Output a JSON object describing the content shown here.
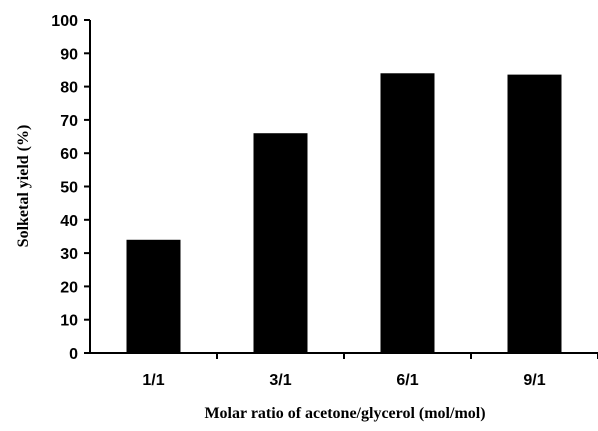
{
  "chart_data": {
    "type": "bar",
    "categories": [
      "1/1",
      "3/1",
      "6/1",
      "9/1"
    ],
    "values": [
      34,
      66,
      84,
      83.6
    ],
    "xlabel": "Molar ratio of acetone/glycerol (mol/mol)",
    "ylabel": "Solketal yield (%)",
    "ylim": [
      0,
      100
    ],
    "yticks": [
      "0",
      "10",
      "20",
      "30",
      "40",
      "50",
      "60",
      "70",
      "80",
      "90",
      "100"
    ],
    "grid": false,
    "legend": "none",
    "bar_color": "#000000",
    "axis_color": "#000000"
  }
}
